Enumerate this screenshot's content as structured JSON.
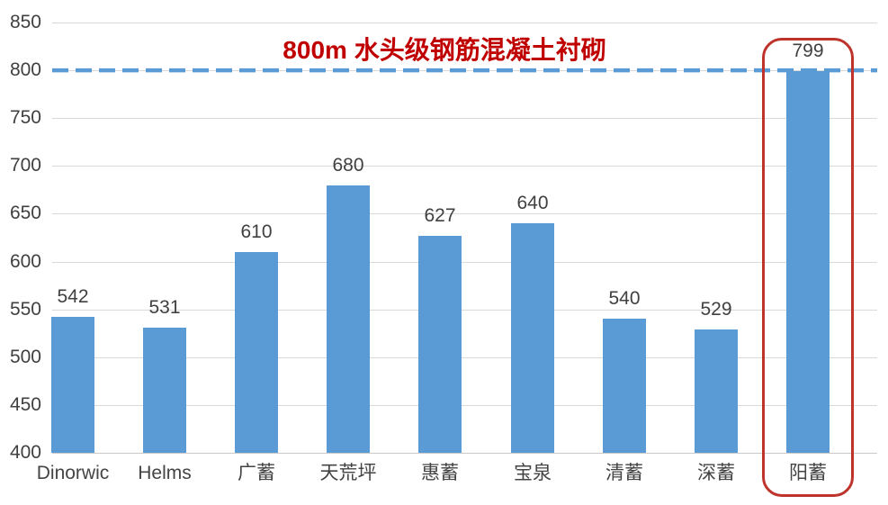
{
  "chart_data": {
    "type": "bar",
    "title": "800m 水头级钢筋混凝土衬砌",
    "title_color": "#C00000",
    "categories": [
      "Dinorwic",
      "Helms",
      "广蓄",
      "天荒坪",
      "惠蓄",
      "宝泉",
      "清蓄",
      "深蓄",
      "阳蓄"
    ],
    "values": [
      542,
      531,
      610,
      680,
      627,
      640,
      540,
      529,
      799
    ],
    "bar_color": "#5B9BD5",
    "value_labels_shown": true,
    "xlabel": "",
    "ylabel": "",
    "ylim": [
      400,
      850
    ],
    "yticks": [
      400,
      450,
      500,
      550,
      600,
      650,
      700,
      750,
      800,
      850
    ],
    "grid": "horizontal-on",
    "gridline_color": "#D9D9D9",
    "axis_text_color": "#404040",
    "legend": "none",
    "reference_line": {
      "value": 800,
      "style": "dashed",
      "color": "#5B9BD5"
    },
    "highlight": {
      "category": "阳蓄",
      "index": 8,
      "box_color": "#BE342C"
    }
  }
}
